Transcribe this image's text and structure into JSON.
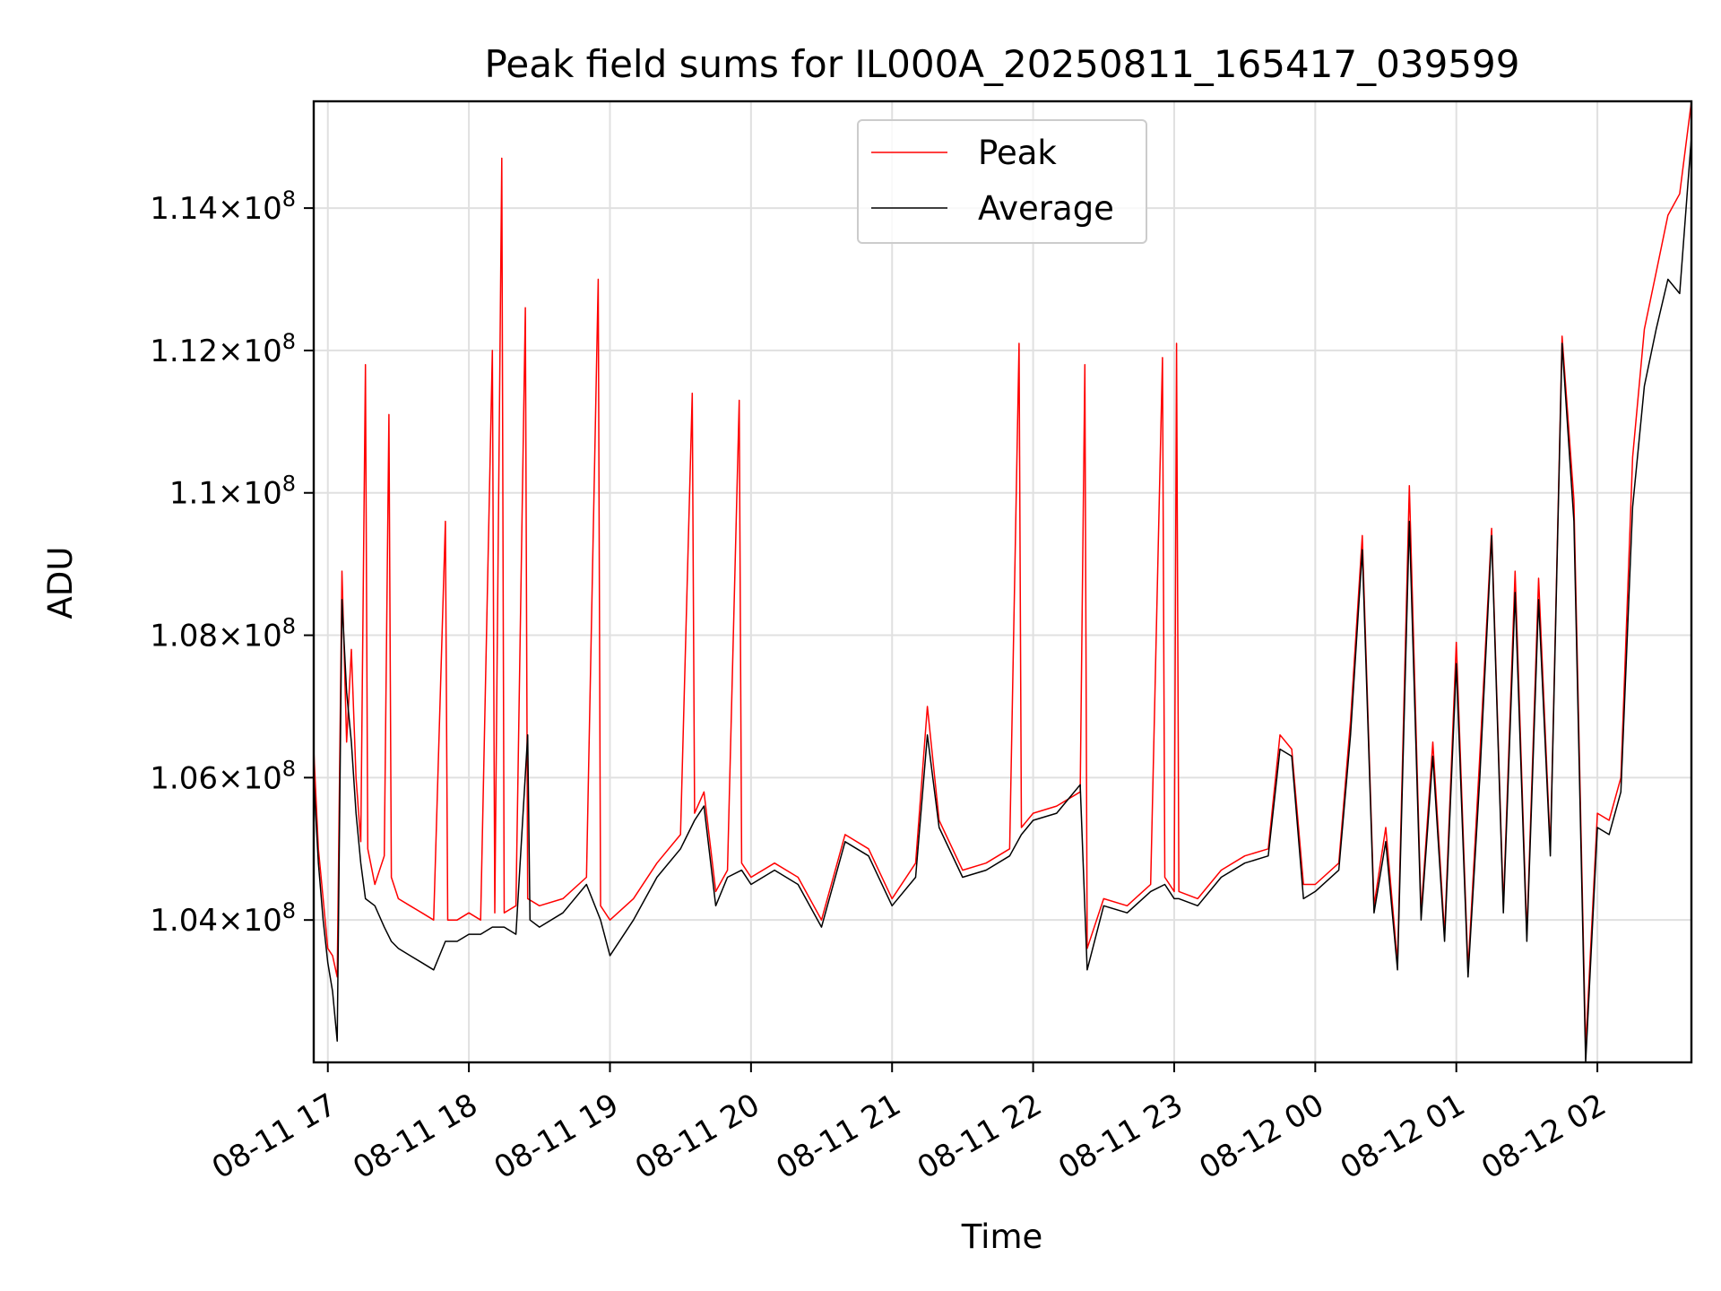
{
  "chart_data": {
    "type": "line",
    "title": "Peak field sums for IL000A_20250811_165417_039599",
    "xlabel": "Time",
    "ylabel": "ADU",
    "xlim": [
      "2025-08-11 16:54",
      "2025-08-12 02:40"
    ],
    "ylim": [
      102000000,
      115500000
    ],
    "grid": true,
    "legend_position": "upper center",
    "x_ticks": [
      {
        "value": "2025-08-11 17:00",
        "label": "08-11 17"
      },
      {
        "value": "2025-08-11 18:00",
        "label": "08-11 18"
      },
      {
        "value": "2025-08-11 19:00",
        "label": "08-11 19"
      },
      {
        "value": "2025-08-11 20:00",
        "label": "08-11 20"
      },
      {
        "value": "2025-08-11 21:00",
        "label": "08-11 21"
      },
      {
        "value": "2025-08-11 22:00",
        "label": "08-11 22"
      },
      {
        "value": "2025-08-11 23:00",
        "label": "08-11 23"
      },
      {
        "value": "2025-08-12 00:00",
        "label": "08-12 00"
      },
      {
        "value": "2025-08-12 01:00",
        "label": "08-12 01"
      },
      {
        "value": "2025-08-12 02:00",
        "label": "08-12 02"
      }
    ],
    "y_ticks": [
      {
        "value": 104000000,
        "mant": "1.04",
        "exp": "8"
      },
      {
        "value": 106000000,
        "mant": "1.06",
        "exp": "8"
      },
      {
        "value": 108000000,
        "mant": "1.08",
        "exp": "8"
      },
      {
        "value": 110000000,
        "mant": "1.1",
        "exp": "8"
      },
      {
        "value": 112000000,
        "mant": "1.12",
        "exp": "8"
      },
      {
        "value": 114000000,
        "mant": "1.14",
        "exp": "8"
      }
    ],
    "series": [
      {
        "name": "Peak",
        "color": "#ff0000",
        "points": [
          [
            "2025-08-11 16:54",
            106.4
          ],
          [
            "2025-08-11 16:56",
            105.0
          ],
          [
            "2025-08-11 16:58",
            104.3
          ],
          [
            "2025-08-11 17:00",
            103.6
          ],
          [
            "2025-08-11 17:02",
            103.5
          ],
          [
            "2025-08-11 17:04",
            103.2
          ],
          [
            "2025-08-11 17:06",
            108.9
          ],
          [
            "2025-08-11 17:08",
            106.5
          ],
          [
            "2025-08-11 17:10",
            107.8
          ],
          [
            "2025-08-11 17:12",
            106.0
          ],
          [
            "2025-08-11 17:14",
            105.1
          ],
          [
            "2025-08-11 17:16",
            111.8
          ],
          [
            "2025-08-11 17:17",
            105.0
          ],
          [
            "2025-08-11 17:20",
            104.5
          ],
          [
            "2025-08-11 17:24",
            104.9
          ],
          [
            "2025-08-11 17:26",
            111.1
          ],
          [
            "2025-08-11 17:27",
            104.6
          ],
          [
            "2025-08-11 17:30",
            104.3
          ],
          [
            "2025-08-11 17:35",
            104.2
          ],
          [
            "2025-08-11 17:40",
            104.1
          ],
          [
            "2025-08-11 17:45",
            104.0
          ],
          [
            "2025-08-11 17:50",
            109.6
          ],
          [
            "2025-08-11 17:51",
            104.0
          ],
          [
            "2025-08-11 17:55",
            104.0
          ],
          [
            "2025-08-11 18:00",
            104.1
          ],
          [
            "2025-08-11 18:05",
            104.0
          ],
          [
            "2025-08-11 18:10",
            112.0
          ],
          [
            "2025-08-11 18:11",
            104.1
          ],
          [
            "2025-08-11 18:14",
            114.7
          ],
          [
            "2025-08-11 18:15",
            104.1
          ],
          [
            "2025-08-11 18:20",
            104.2
          ],
          [
            "2025-08-11 18:24",
            112.6
          ],
          [
            "2025-08-11 18:25",
            104.3
          ],
          [
            "2025-08-11 18:30",
            104.2
          ],
          [
            "2025-08-11 18:40",
            104.3
          ],
          [
            "2025-08-11 18:50",
            104.6
          ],
          [
            "2025-08-11 18:55",
            113.0
          ],
          [
            "2025-08-11 18:56",
            104.2
          ],
          [
            "2025-08-11 19:00",
            104.0
          ],
          [
            "2025-08-11 19:10",
            104.3
          ],
          [
            "2025-08-11 19:20",
            104.8
          ],
          [
            "2025-08-11 19:30",
            105.2
          ],
          [
            "2025-08-11 19:35",
            111.4
          ],
          [
            "2025-08-11 19:36",
            105.5
          ],
          [
            "2025-08-11 19:40",
            105.8
          ],
          [
            "2025-08-11 19:45",
            104.4
          ],
          [
            "2025-08-11 19:50",
            104.7
          ],
          [
            "2025-08-11 19:55",
            111.3
          ],
          [
            "2025-08-11 19:56",
            104.8
          ],
          [
            "2025-08-11 20:00",
            104.6
          ],
          [
            "2025-08-11 20:10",
            104.8
          ],
          [
            "2025-08-11 20:20",
            104.6
          ],
          [
            "2025-08-11 20:30",
            104.0
          ],
          [
            "2025-08-11 20:40",
            105.2
          ],
          [
            "2025-08-11 20:50",
            105.0
          ],
          [
            "2025-08-11 21:00",
            104.3
          ],
          [
            "2025-08-11 21:10",
            104.8
          ],
          [
            "2025-08-11 21:15",
            107.0
          ],
          [
            "2025-08-11 21:20",
            105.4
          ],
          [
            "2025-08-11 21:30",
            104.7
          ],
          [
            "2025-08-11 21:40",
            104.8
          ],
          [
            "2025-08-11 21:50",
            105.0
          ],
          [
            "2025-08-11 21:54",
            112.1
          ],
          [
            "2025-08-11 21:55",
            105.3
          ],
          [
            "2025-08-11 22:00",
            105.5
          ],
          [
            "2025-08-11 22:10",
            105.6
          ],
          [
            "2025-08-11 22:20",
            105.8
          ],
          [
            "2025-08-11 22:22",
            111.8
          ],
          [
            "2025-08-11 22:23",
            103.6
          ],
          [
            "2025-08-11 22:30",
            104.3
          ],
          [
            "2025-08-11 22:40",
            104.2
          ],
          [
            "2025-08-11 22:50",
            104.5
          ],
          [
            "2025-08-11 22:55",
            111.9
          ],
          [
            "2025-08-11 22:56",
            104.6
          ],
          [
            "2025-08-11 23:00",
            104.4
          ],
          [
            "2025-08-11 23:01",
            112.1
          ],
          [
            "2025-08-11 23:02",
            104.4
          ],
          [
            "2025-08-11 23:10",
            104.3
          ],
          [
            "2025-08-11 23:20",
            104.7
          ],
          [
            "2025-08-11 23:30",
            104.9
          ],
          [
            "2025-08-11 23:40",
            105.0
          ],
          [
            "2025-08-11 23:45",
            106.6
          ],
          [
            "2025-08-11 23:50",
            106.4
          ],
          [
            "2025-08-11 23:55",
            104.5
          ],
          [
            "2025-08-12 00:00",
            104.5
          ],
          [
            "2025-08-12 00:10",
            104.8
          ],
          [
            "2025-08-12 00:15",
            106.8
          ],
          [
            "2025-08-12 00:20",
            109.4
          ],
          [
            "2025-08-12 00:25",
            104.2
          ],
          [
            "2025-08-12 00:30",
            105.3
          ],
          [
            "2025-08-12 00:35",
            103.4
          ],
          [
            "2025-08-12 00:40",
            110.1
          ],
          [
            "2025-08-12 00:45",
            104.1
          ],
          [
            "2025-08-12 00:50",
            106.5
          ],
          [
            "2025-08-12 00:55",
            103.8
          ],
          [
            "2025-08-12 01:00",
            107.9
          ],
          [
            "2025-08-12 01:05",
            103.3
          ],
          [
            "2025-08-12 01:10",
            106.3
          ],
          [
            "2025-08-12 01:15",
            109.5
          ],
          [
            "2025-08-12 01:20",
            104.2
          ],
          [
            "2025-08-12 01:25",
            108.9
          ],
          [
            "2025-08-12 01:30",
            103.8
          ],
          [
            "2025-08-12 01:35",
            108.8
          ],
          [
            "2025-08-12 01:40",
            105.0
          ],
          [
            "2025-08-12 01:45",
            112.2
          ],
          [
            "2025-08-12 01:50",
            109.9
          ],
          [
            "2025-08-12 01:55",
            102.2
          ],
          [
            "2025-08-12 02:00",
            105.5
          ],
          [
            "2025-08-12 02:05",
            105.4
          ],
          [
            "2025-08-12 02:10",
            106.0
          ],
          [
            "2025-08-12 02:15",
            110.5
          ],
          [
            "2025-08-12 02:20",
            112.3
          ],
          [
            "2025-08-12 02:25",
            113.1
          ],
          [
            "2025-08-12 02:30",
            113.9
          ],
          [
            "2025-08-12 02:35",
            114.2
          ],
          [
            "2025-08-12 02:40",
            115.5
          ]
        ]
      },
      {
        "name": "Average",
        "color": "#000000",
        "points": [
          [
            "2025-08-11 16:54",
            106.0
          ],
          [
            "2025-08-11 16:56",
            104.8
          ],
          [
            "2025-08-11 16:58",
            104.0
          ],
          [
            "2025-08-11 17:00",
            103.4
          ],
          [
            "2025-08-11 17:02",
            103.0
          ],
          [
            "2025-08-11 17:04",
            102.3
          ],
          [
            "2025-08-11 17:06",
            108.5
          ],
          [
            "2025-08-11 17:08",
            107.2
          ],
          [
            "2025-08-11 17:10",
            106.5
          ],
          [
            "2025-08-11 17:12",
            105.5
          ],
          [
            "2025-08-11 17:14",
            104.8
          ],
          [
            "2025-08-11 17:16",
            104.3
          ],
          [
            "2025-08-11 17:20",
            104.2
          ],
          [
            "2025-08-11 17:24",
            103.9
          ],
          [
            "2025-08-11 17:27",
            103.7
          ],
          [
            "2025-08-11 17:30",
            103.6
          ],
          [
            "2025-08-11 17:35",
            103.5
          ],
          [
            "2025-08-11 17:40",
            103.4
          ],
          [
            "2025-08-11 17:45",
            103.3
          ],
          [
            "2025-08-11 17:50",
            103.7
          ],
          [
            "2025-08-11 17:55",
            103.7
          ],
          [
            "2025-08-11 18:00",
            103.8
          ],
          [
            "2025-08-11 18:05",
            103.8
          ],
          [
            "2025-08-11 18:10",
            103.9
          ],
          [
            "2025-08-11 18:15",
            103.9
          ],
          [
            "2025-08-11 18:20",
            103.8
          ],
          [
            "2025-08-11 18:25",
            106.6
          ],
          [
            "2025-08-11 18:26",
            104.0
          ],
          [
            "2025-08-11 18:30",
            103.9
          ],
          [
            "2025-08-11 18:40",
            104.1
          ],
          [
            "2025-08-11 18:50",
            104.5
          ],
          [
            "2025-08-11 18:56",
            104.0
          ],
          [
            "2025-08-11 19:00",
            103.5
          ],
          [
            "2025-08-11 19:10",
            104.0
          ],
          [
            "2025-08-11 19:20",
            104.6
          ],
          [
            "2025-08-11 19:30",
            105.0
          ],
          [
            "2025-08-11 19:36",
            105.4
          ],
          [
            "2025-08-11 19:40",
            105.6
          ],
          [
            "2025-08-11 19:45",
            104.2
          ],
          [
            "2025-08-11 19:50",
            104.6
          ],
          [
            "2025-08-11 19:56",
            104.7
          ],
          [
            "2025-08-11 20:00",
            104.5
          ],
          [
            "2025-08-11 20:10",
            104.7
          ],
          [
            "2025-08-11 20:20",
            104.5
          ],
          [
            "2025-08-11 20:30",
            103.9
          ],
          [
            "2025-08-11 20:40",
            105.1
          ],
          [
            "2025-08-11 20:50",
            104.9
          ],
          [
            "2025-08-11 21:00",
            104.2
          ],
          [
            "2025-08-11 21:10",
            104.6
          ],
          [
            "2025-08-11 21:15",
            106.6
          ],
          [
            "2025-08-11 21:20",
            105.3
          ],
          [
            "2025-08-11 21:30",
            104.6
          ],
          [
            "2025-08-11 21:40",
            104.7
          ],
          [
            "2025-08-11 21:50",
            104.9
          ],
          [
            "2025-08-11 21:55",
            105.2
          ],
          [
            "2025-08-11 22:00",
            105.4
          ],
          [
            "2025-08-11 22:10",
            105.5
          ],
          [
            "2025-08-11 22:20",
            105.9
          ],
          [
            "2025-08-11 22:23",
            103.3
          ],
          [
            "2025-08-11 22:30",
            104.2
          ],
          [
            "2025-08-11 22:40",
            104.1
          ],
          [
            "2025-08-11 22:50",
            104.4
          ],
          [
            "2025-08-11 22:56",
            104.5
          ],
          [
            "2025-08-11 23:00",
            104.3
          ],
          [
            "2025-08-11 23:02",
            104.3
          ],
          [
            "2025-08-11 23:10",
            104.2
          ],
          [
            "2025-08-11 23:20",
            104.6
          ],
          [
            "2025-08-11 23:30",
            104.8
          ],
          [
            "2025-08-11 23:40",
            104.9
          ],
          [
            "2025-08-11 23:45",
            106.4
          ],
          [
            "2025-08-11 23:50",
            106.3
          ],
          [
            "2025-08-11 23:55",
            104.3
          ],
          [
            "2025-08-12 00:00",
            104.4
          ],
          [
            "2025-08-12 00:10",
            104.7
          ],
          [
            "2025-08-12 00:15",
            106.6
          ],
          [
            "2025-08-12 00:20",
            109.2
          ],
          [
            "2025-08-12 00:25",
            104.1
          ],
          [
            "2025-08-12 00:30",
            105.1
          ],
          [
            "2025-08-12 00:35",
            103.3
          ],
          [
            "2025-08-12 00:40",
            109.6
          ],
          [
            "2025-08-12 00:45",
            104.0
          ],
          [
            "2025-08-12 00:50",
            106.3
          ],
          [
            "2025-08-12 00:55",
            103.7
          ],
          [
            "2025-08-12 01:00",
            107.6
          ],
          [
            "2025-08-12 01:05",
            103.2
          ],
          [
            "2025-08-12 01:10",
            106.0
          ],
          [
            "2025-08-12 01:15",
            109.4
          ],
          [
            "2025-08-12 01:20",
            104.1
          ],
          [
            "2025-08-12 01:25",
            108.6
          ],
          [
            "2025-08-12 01:30",
            103.7
          ],
          [
            "2025-08-12 01:35",
            108.5
          ],
          [
            "2025-08-12 01:40",
            104.9
          ],
          [
            "2025-08-12 01:45",
            112.1
          ],
          [
            "2025-08-12 01:50",
            109.6
          ],
          [
            "2025-08-12 01:55",
            102.0
          ],
          [
            "2025-08-12 02:00",
            105.3
          ],
          [
            "2025-08-12 02:05",
            105.2
          ],
          [
            "2025-08-12 02:10",
            105.8
          ],
          [
            "2025-08-12 02:15",
            109.8
          ],
          [
            "2025-08-12 02:20",
            111.5
          ],
          [
            "2025-08-12 02:25",
            112.3
          ],
          [
            "2025-08-12 02:30",
            113.0
          ],
          [
            "2025-08-12 02:35",
            112.8
          ],
          [
            "2025-08-12 02:40",
            115.0
          ]
        ]
      }
    ]
  }
}
